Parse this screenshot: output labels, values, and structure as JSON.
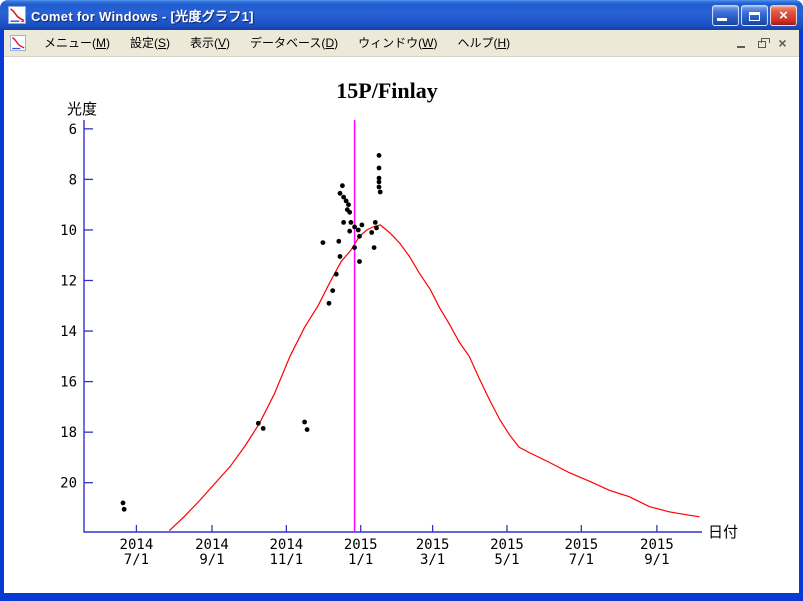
{
  "window": {
    "title": "Comet for Windows - [光度グラフ1]"
  },
  "icons": {
    "app_icon": "comet-light-curve-thumbnail",
    "minimize": "_",
    "maximize": "□",
    "close": "×",
    "mdi_minimize": "_",
    "mdi_restore": "❐",
    "mdi_close": "×"
  },
  "colors": {
    "window_border": "#0839d5",
    "titlebar_blue": "#1e5cd6",
    "close_button_red": "#cc3428",
    "menubar_bg": "#ece9d8"
  },
  "menubar": {
    "items": [
      {
        "id": "menu",
        "text": "メニュー",
        "key": "M"
      },
      {
        "id": "settings",
        "text": "設定",
        "key": "S"
      },
      {
        "id": "view",
        "text": "表示",
        "key": "V"
      },
      {
        "id": "database",
        "text": "データベース",
        "key": "D"
      },
      {
        "id": "window",
        "text": "ウィンドウ",
        "key": "W"
      },
      {
        "id": "help",
        "text": "ヘルプ",
        "key": "H"
      }
    ]
  },
  "chart_data": {
    "type": "scatter",
    "title": "15P/Finlay",
    "xlabel": "日付",
    "ylabel": "光度",
    "grid": false,
    "legend": "none",
    "x_range": [
      "2014-05-19",
      "2015-10-08"
    ],
    "y_range": [
      5.65,
      21.95
    ],
    "y_axis_direction": "magnitude-increases-downward",
    "axis_color": "#3333cc",
    "y_ticks": [
      6,
      8,
      10,
      12,
      14,
      16,
      18,
      20
    ],
    "x_ticks": [
      {
        "date": "2014-07-01",
        "year": "2014",
        "day": "7/1"
      },
      {
        "date": "2014-09-01",
        "year": "2014",
        "day": "9/1"
      },
      {
        "date": "2014-11-01",
        "year": "2014",
        "day": "11/1"
      },
      {
        "date": "2015-01-01",
        "year": "2015",
        "day": "1/1"
      },
      {
        "date": "2015-03-01",
        "year": "2015",
        "day": "3/1"
      },
      {
        "date": "2015-05-01",
        "year": "2015",
        "day": "5/1"
      },
      {
        "date": "2015-07-01",
        "year": "2015",
        "day": "7/1"
      },
      {
        "date": "2015-09-01",
        "year": "2015",
        "day": "9/1"
      }
    ],
    "perihelion_line": {
      "date": "2014-12-27",
      "color": "#ff00ff"
    },
    "series": [
      {
        "name": "observations",
        "type": "scatter",
        "color": "#000000",
        "points": [
          {
            "d": "2014-06-20",
            "m": 20.8
          },
          {
            "d": "2014-06-21",
            "m": 21.05
          },
          {
            "d": "2014-10-09",
            "m": 17.65
          },
          {
            "d": "2014-10-13",
            "m": 17.85
          },
          {
            "d": "2014-11-16",
            "m": 17.6
          },
          {
            "d": "2014-11-18",
            "m": 17.9
          },
          {
            "d": "2014-12-01",
            "m": 10.5
          },
          {
            "d": "2014-12-06",
            "m": 12.9
          },
          {
            "d": "2014-12-09",
            "m": 12.4
          },
          {
            "d": "2014-12-12",
            "m": 11.75
          },
          {
            "d": "2014-12-14",
            "m": 10.45
          },
          {
            "d": "2014-12-15",
            "m": 8.55
          },
          {
            "d": "2014-12-15",
            "m": 11.05
          },
          {
            "d": "2014-12-17",
            "m": 8.25
          },
          {
            "d": "2014-12-18",
            "m": 8.7
          },
          {
            "d": "2014-12-18",
            "m": 9.7
          },
          {
            "d": "2014-12-20",
            "m": 8.85
          },
          {
            "d": "2014-12-21",
            "m": 9.2
          },
          {
            "d": "2014-12-22",
            "m": 9.0
          },
          {
            "d": "2014-12-23",
            "m": 9.3
          },
          {
            "d": "2014-12-23",
            "m": 10.05
          },
          {
            "d": "2014-12-24",
            "m": 9.7
          },
          {
            "d": "2014-12-27",
            "m": 9.88
          },
          {
            "d": "2014-12-27",
            "m": 10.7
          },
          {
            "d": "2014-12-30",
            "m": 10.0
          },
          {
            "d": "2014-12-31",
            "m": 10.25
          },
          {
            "d": "2014-12-31",
            "m": 11.25
          },
          {
            "d": "2015-01-02",
            "m": 9.8
          },
          {
            "d": "2015-01-10",
            "m": 10.1
          },
          {
            "d": "2015-01-12",
            "m": 10.7
          },
          {
            "d": "2015-01-13",
            "m": 9.7
          },
          {
            "d": "2015-01-14",
            "m": 9.92
          },
          {
            "d": "2015-01-16",
            "m": 7.05
          },
          {
            "d": "2015-01-16",
            "m": 7.55
          },
          {
            "d": "2015-01-16",
            "m": 7.95
          },
          {
            "d": "2015-01-16",
            "m": 8.1
          },
          {
            "d": "2015-01-16",
            "m": 8.3
          },
          {
            "d": "2015-01-17",
            "m": 8.5
          }
        ]
      },
      {
        "name": "predicted-light-curve",
        "type": "line",
        "color": "#ff0000",
        "points": [
          [
            "2014-07-28",
            21.9
          ],
          [
            "2014-08-09",
            21.35
          ],
          [
            "2014-08-22",
            20.7
          ],
          [
            "2014-09-03",
            20.05
          ],
          [
            "2014-09-16",
            19.35
          ],
          [
            "2014-09-28",
            18.55
          ],
          [
            "2014-10-10",
            17.65
          ],
          [
            "2014-10-22",
            16.5
          ],
          [
            "2014-11-04",
            15.0
          ],
          [
            "2014-11-16",
            13.85
          ],
          [
            "2014-11-27",
            13.0
          ],
          [
            "2014-12-07",
            12.05
          ],
          [
            "2014-12-16",
            11.25
          ],
          [
            "2014-12-24",
            10.8
          ],
          [
            "2014-12-31",
            10.25
          ],
          [
            "2015-01-06",
            10.0
          ],
          [
            "2015-01-11",
            9.88
          ],
          [
            "2015-01-17",
            9.8
          ],
          [
            "2015-01-25",
            10.12
          ],
          [
            "2015-02-02",
            10.52
          ],
          [
            "2015-02-10",
            11.05
          ],
          [
            "2015-02-18",
            11.7
          ],
          [
            "2015-02-27",
            12.35
          ],
          [
            "2015-03-07",
            13.1
          ],
          [
            "2015-03-15",
            13.75
          ],
          [
            "2015-03-23",
            14.45
          ],
          [
            "2015-03-31",
            15.0
          ],
          [
            "2015-04-08",
            15.85
          ],
          [
            "2015-04-17",
            16.75
          ],
          [
            "2015-04-25",
            17.5
          ],
          [
            "2015-05-03",
            18.1
          ],
          [
            "2015-05-11",
            18.6
          ],
          [
            "2015-05-19",
            18.8
          ],
          [
            "2015-06-05",
            19.2
          ],
          [
            "2015-06-21",
            19.6
          ],
          [
            "2015-07-08",
            19.95
          ],
          [
            "2015-07-24",
            20.3
          ],
          [
            "2015-08-09",
            20.55
          ],
          [
            "2015-08-26",
            20.95
          ],
          [
            "2015-09-11",
            21.15
          ],
          [
            "2015-09-23",
            21.25
          ],
          [
            "2015-10-06",
            21.35
          ]
        ]
      }
    ]
  }
}
